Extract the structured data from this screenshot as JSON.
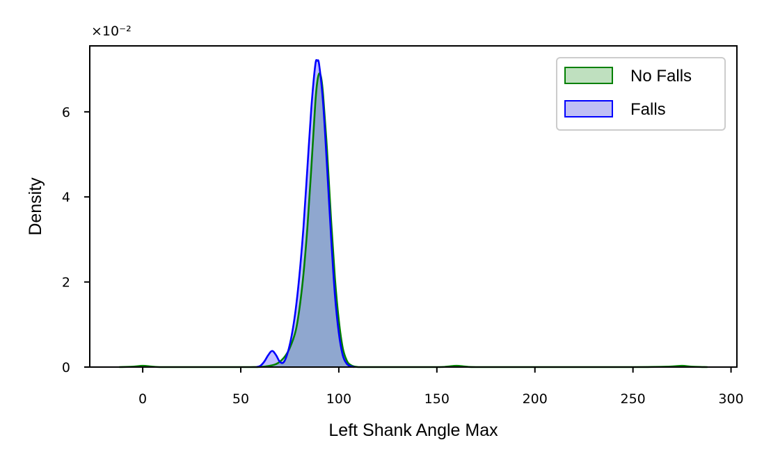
{
  "chart_data": {
    "type": "area",
    "xlabel": "Left Shank Angle Max",
    "ylabel": "Density",
    "xlim": [
      -27,
      303
    ],
    "ylim": [
      0,
      0.0755
    ],
    "x_ticks": [
      0,
      50,
      100,
      150,
      200,
      250,
      300
    ],
    "x_tick_labels": [
      "0",
      "50",
      "100",
      "150",
      "200",
      "250",
      "300"
    ],
    "y_ticks": [
      0,
      0.02,
      0.04,
      0.06
    ],
    "y_tick_labels": [
      "0",
      "2",
      "4",
      "6"
    ],
    "y_offset_text": "×10⁻²",
    "grid": false,
    "legend_position": "top-right",
    "series": [
      {
        "name": "No Falls",
        "color": "#008000",
        "fill": "#bfe0bf",
        "x": [
          -12,
          -5,
          0,
          5,
          10,
          30,
          55,
          62,
          68,
          72,
          75,
          78,
          80,
          82,
          84,
          86,
          88,
          89,
          90,
          91,
          92,
          94,
          96,
          98,
          100,
          102,
          104,
          106,
          110,
          120,
          150,
          155,
          160,
          165,
          170,
          200,
          250,
          268,
          275,
          280,
          288
        ],
        "y": [
          0,
          0.0001,
          0.0003,
          0.0001,
          0,
          0,
          0,
          0.0001,
          0.0007,
          0.0022,
          0.0045,
          0.0085,
          0.014,
          0.022,
          0.033,
          0.047,
          0.062,
          0.067,
          0.069,
          0.068,
          0.064,
          0.051,
          0.035,
          0.021,
          0.011,
          0.0045,
          0.0016,
          0.0005,
          0,
          0,
          0,
          0.0001,
          0.0003,
          0.0001,
          0,
          0,
          0,
          0.0001,
          0.0003,
          0.0001,
          0
        ]
      },
      {
        "name": "Falls",
        "color": "#0000ff",
        "fill": "#bfbff5",
        "x": [
          58,
          60,
          62,
          64,
          66,
          68,
          70,
          72,
          74,
          76,
          78,
          80,
          82,
          84,
          86,
          88,
          89,
          90,
          92,
          94,
          96,
          98,
          100,
          102,
          104,
          106,
          108
        ],
        "y": [
          0,
          0.0003,
          0.0013,
          0.0028,
          0.0038,
          0.0028,
          0.0012,
          0.0012,
          0.0035,
          0.0075,
          0.0135,
          0.022,
          0.033,
          0.047,
          0.061,
          0.071,
          0.072,
          0.071,
          0.062,
          0.047,
          0.031,
          0.017,
          0.008,
          0.0028,
          0.0008,
          0.0002,
          0
        ]
      }
    ]
  }
}
